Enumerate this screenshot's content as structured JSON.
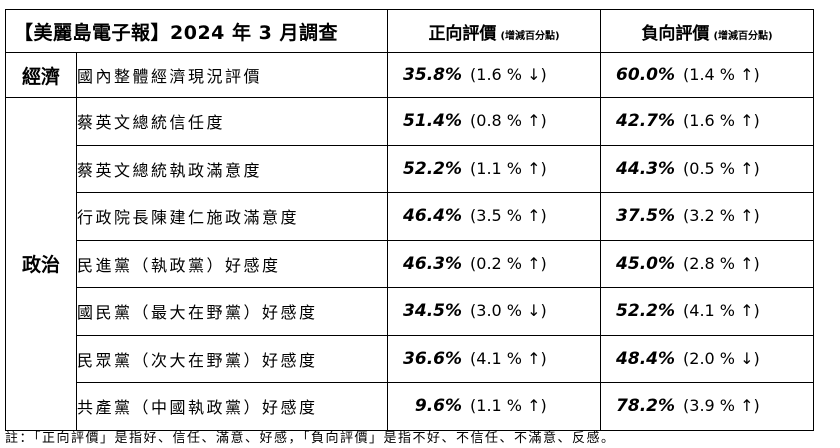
{
  "table": {
    "title": "【美麗島電子報】2024 年 3 月調查",
    "positive_header": "正向評價",
    "negative_header": "負向評價",
    "change_note": "(增減百分點)",
    "categories": {
      "economy": "經濟",
      "politics": "政治"
    },
    "economy_row": {
      "item": "國內整體經濟現況評價",
      "positive": "35.8%",
      "positive_change": "(1.6 % ↓)",
      "negative": "60.0%",
      "negative_change": "(1.4 % ↑)"
    },
    "politics_rows": [
      {
        "item": "蔡英文總統信任度",
        "positive": "51.4%",
        "positive_change": "(0.8 % ↑)",
        "negative": "42.7%",
        "negative_change": "(1.6 % ↑)"
      },
      {
        "item": "蔡英文總統執政滿意度",
        "positive": "52.2%",
        "positive_change": "(1.1 % ↑)",
        "negative": "44.3%",
        "negative_change": "(0.5 % ↑)"
      },
      {
        "item": "行政院長陳建仁施政滿意度",
        "positive": "46.4%",
        "positive_change": "(3.5 % ↑)",
        "negative": "37.5%",
        "negative_change": "(3.2 % ↑)"
      },
      {
        "item": "民進黨（執政黨）好感度",
        "positive": "46.3%",
        "positive_change": "(0.2 % ↑)",
        "negative": "45.0%",
        "negative_change": "(2.8 % ↑)"
      },
      {
        "item": "國民黨（最大在野黨）好感度",
        "positive": "34.5%",
        "positive_change": "(3.0 % ↓)",
        "negative": "52.2%",
        "negative_change": "(4.1 % ↑)"
      },
      {
        "item": "民眾黨（次大在野黨）好感度",
        "positive": "36.6%",
        "positive_change": "(4.1 % ↑)",
        "negative": "48.4%",
        "negative_change": "(2.0 % ↓)"
      },
      {
        "item": "共產黨（中國執政黨）好感度",
        "positive": "9.6%",
        "positive_change": "(1.1 % ↑)",
        "negative": "78.2%",
        "negative_change": "(3.9 % ↑)"
      }
    ]
  },
  "footnote": "註：「正向評價」是指好、信任、滿意、好感，「負向評價」是指不好、不信任、不滿意、反感。"
}
